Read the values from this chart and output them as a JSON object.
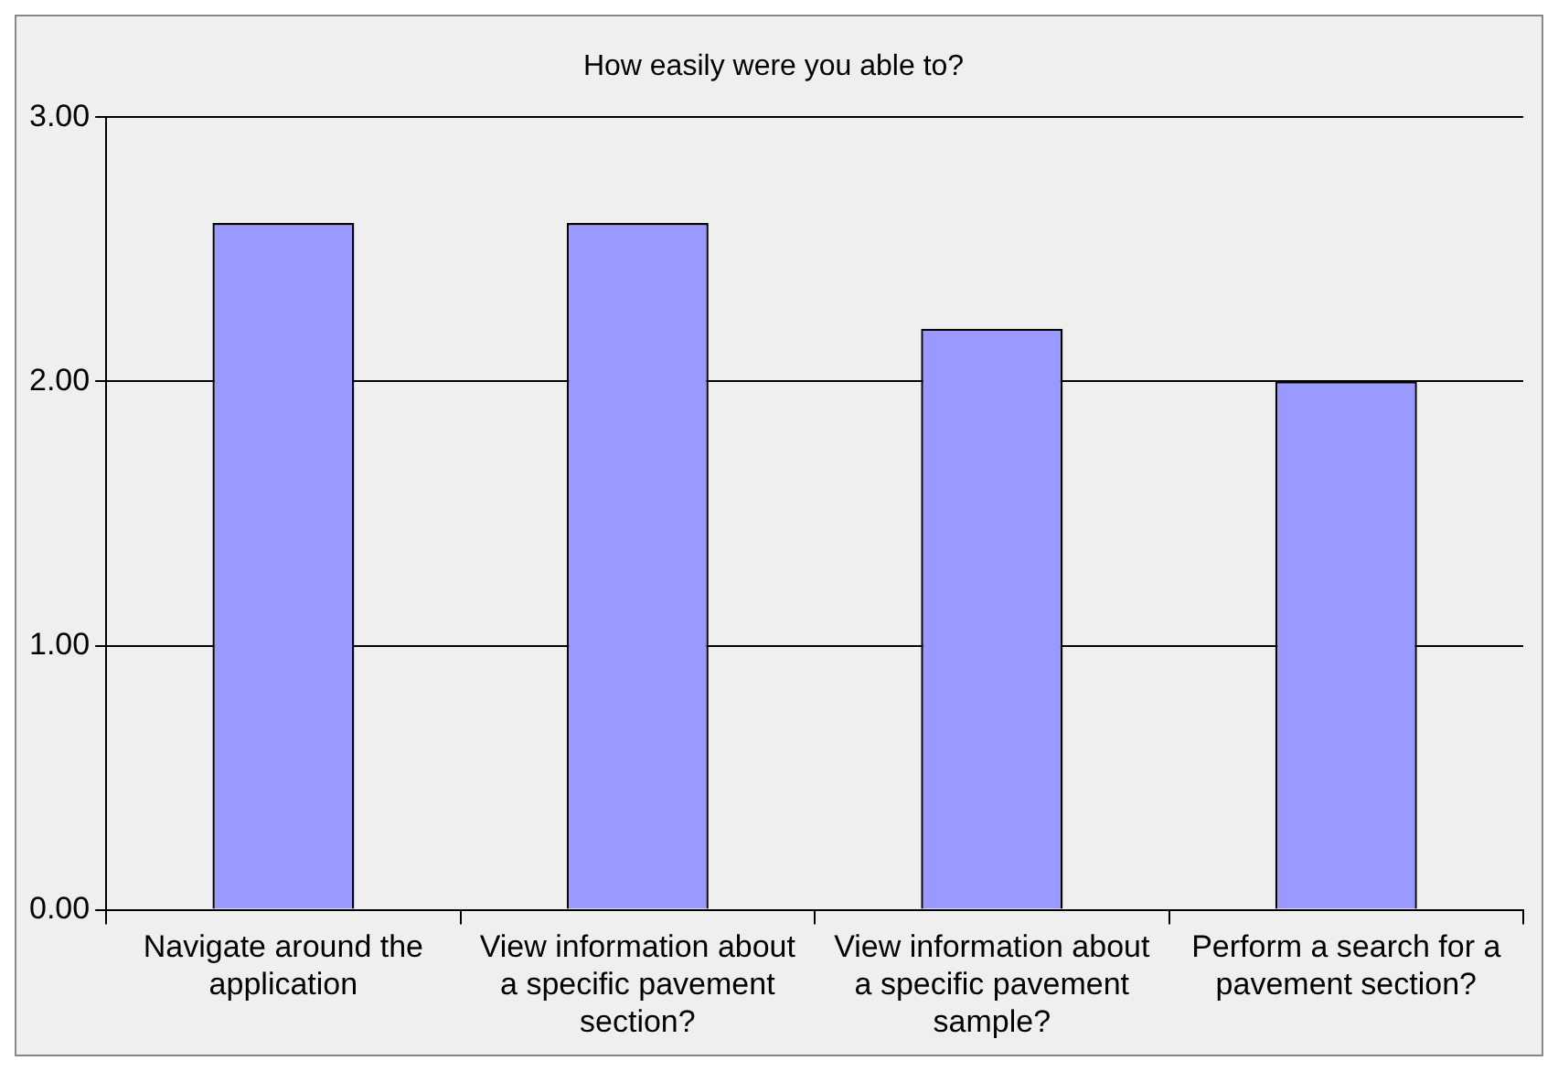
{
  "chart_data": {
    "type": "bar",
    "title": "How easily were you able to?",
    "categories": [
      "Navigate around the application",
      "View information about a specific pavement section?",
      "View information about a specific pavement sample?",
      "Perform a search for a pavement section?"
    ],
    "values": [
      2.6,
      2.6,
      2.2,
      2.0
    ],
    "color": "#9999ff",
    "ylim": [
      0,
      3
    ],
    "yticks": [
      {
        "value": 0,
        "label": "0.00"
      },
      {
        "value": 1,
        "label": "1.00"
      },
      {
        "value": 2,
        "label": "2.00"
      },
      {
        "value": 3,
        "label": "3.00"
      }
    ],
    "grid": "y",
    "legend": false
  }
}
